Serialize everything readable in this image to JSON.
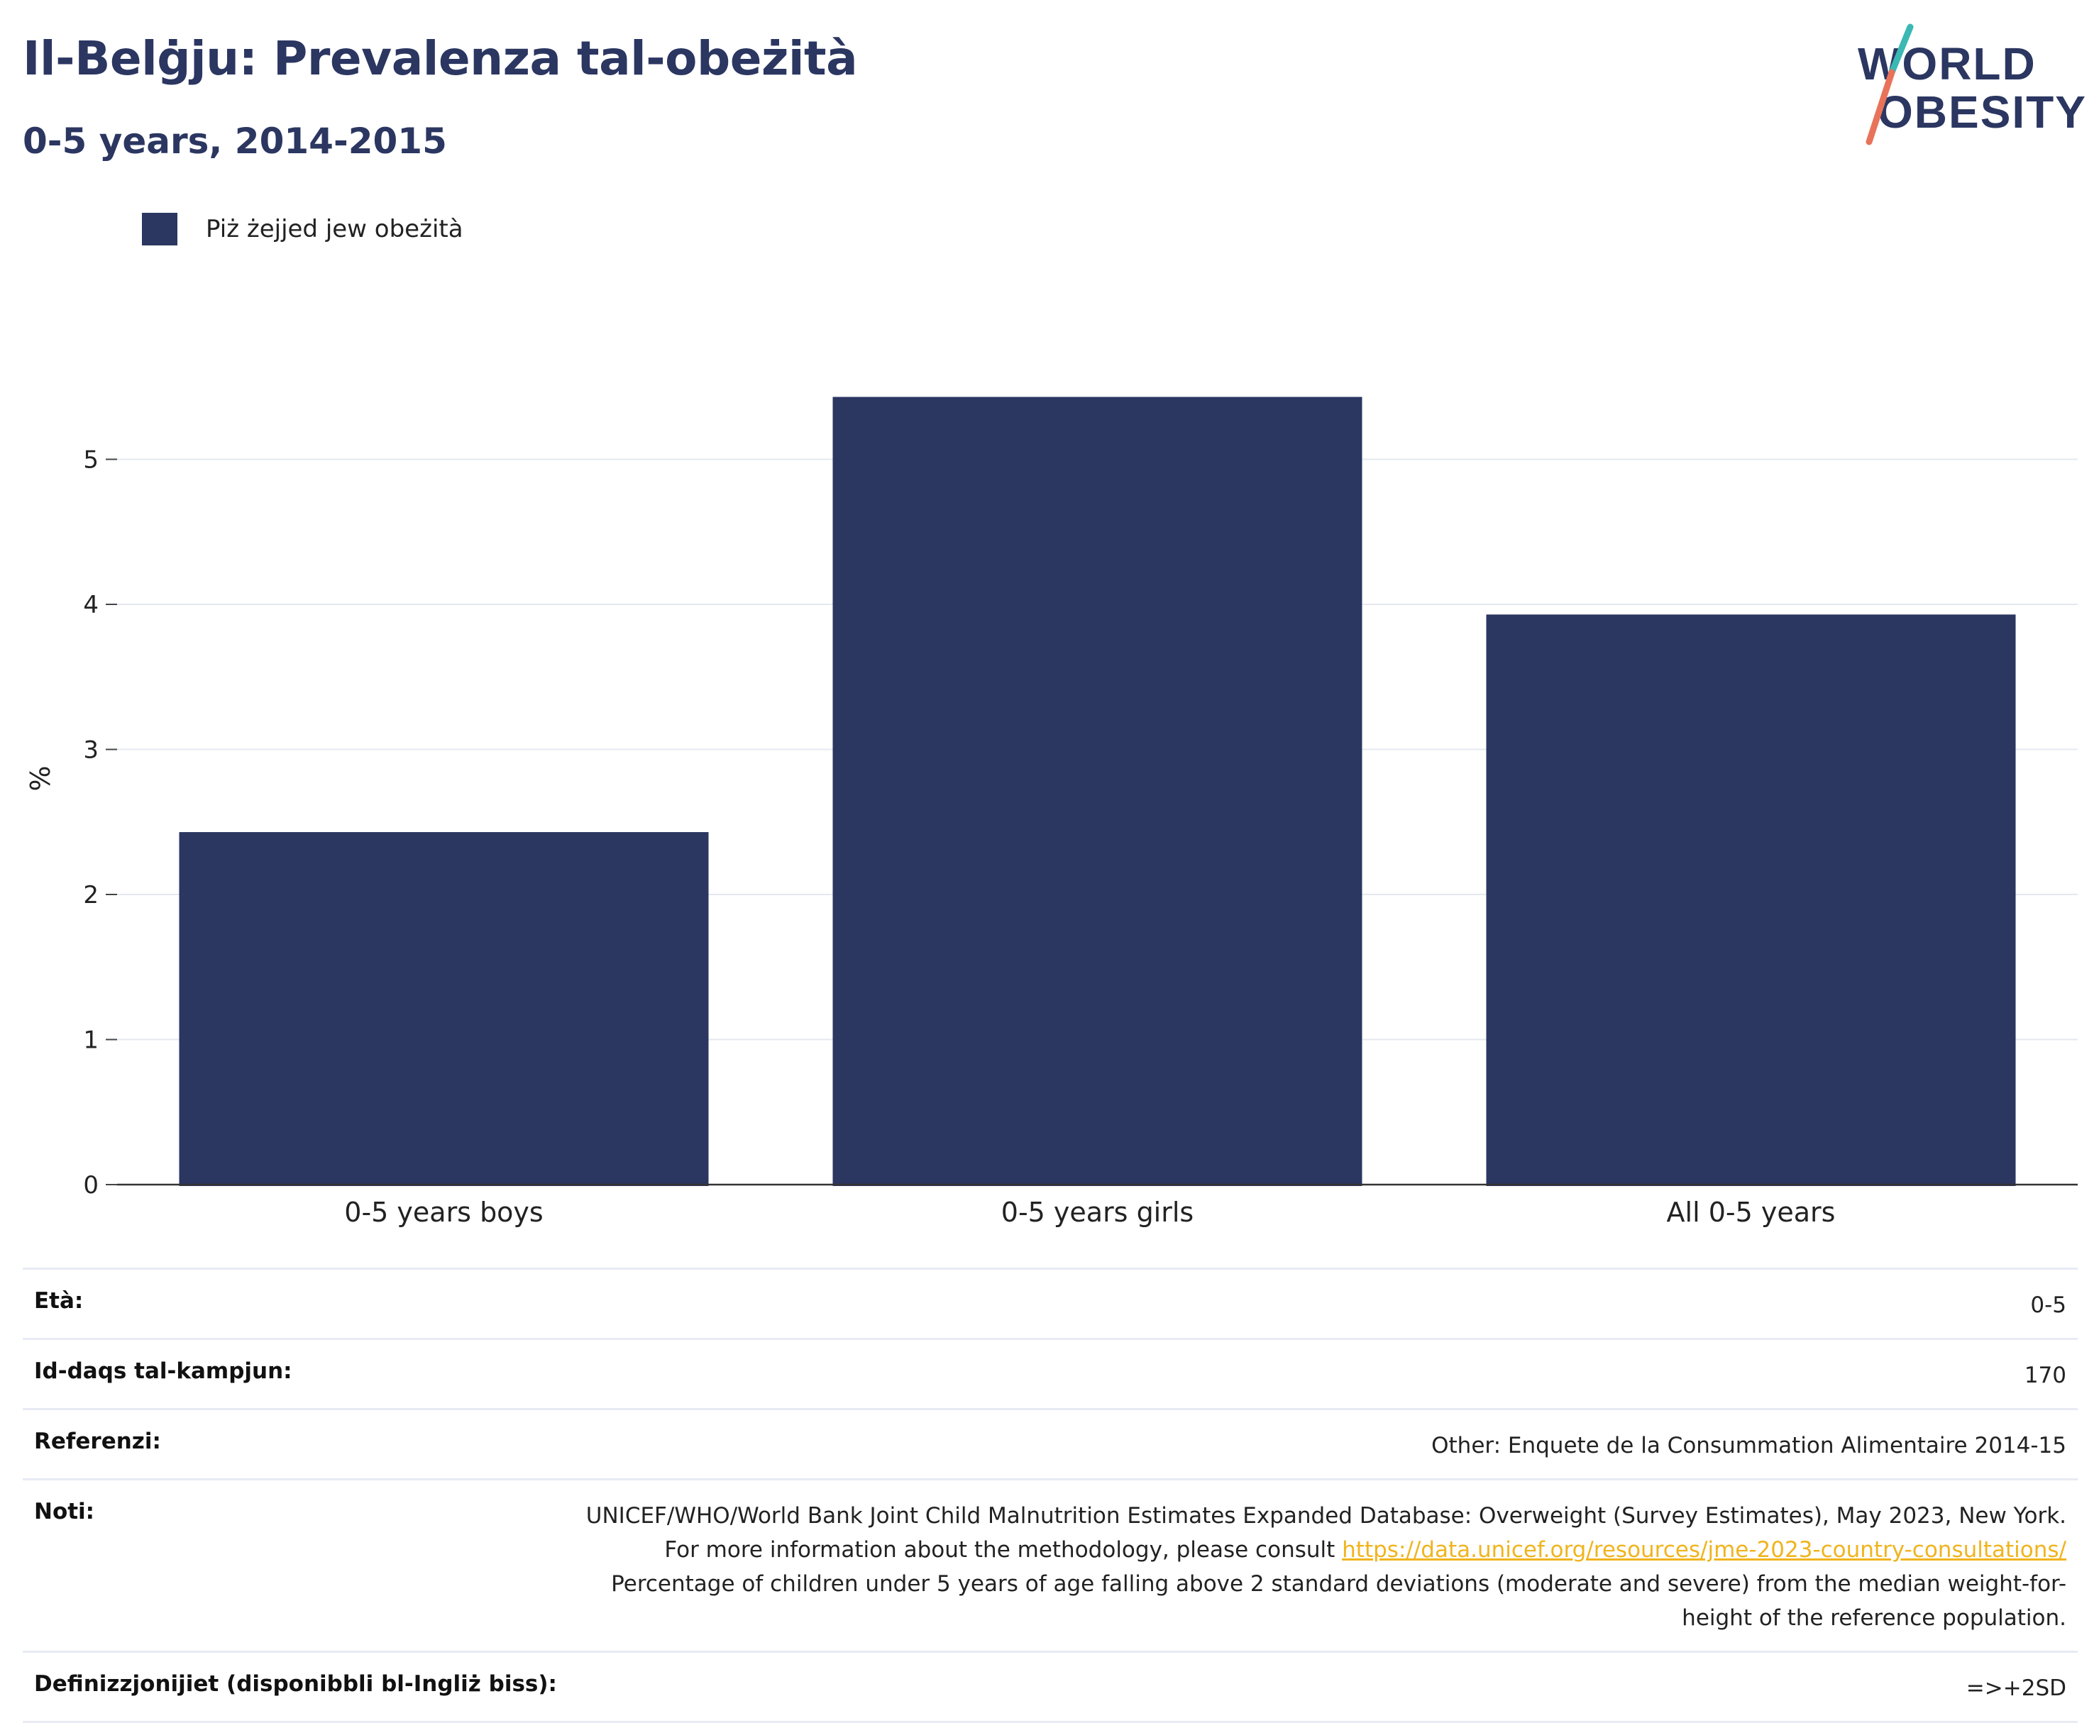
{
  "header": {
    "title": "Il-Belġju: Prevalenza tal-obeżità",
    "subtitle": "0-5 years, 2014-2015"
  },
  "logo": {
    "line1": "WORLD",
    "line2": "OBESITY",
    "colors": {
      "text": "#2b3661",
      "slash_top": "#3cb8b4",
      "slash_bottom": "#e8735a"
    }
  },
  "legend": {
    "label": "Piż żejjed jew obeżità",
    "color": "#2b3661"
  },
  "chart_data": {
    "type": "bar",
    "categories": [
      "0-5 years boys",
      "0-5 years girls",
      "All 0-5 years"
    ],
    "series": [
      {
        "name": "Piż żejjed jew obeżità",
        "values": [
          2.43,
          5.43,
          3.93
        ],
        "color": "#2b3661"
      }
    ],
    "ylabel": "%",
    "ylim": [
      0,
      5.6
    ],
    "yticks": [
      0,
      1,
      2,
      3,
      4,
      5
    ],
    "grid": true,
    "legend_position": "top-left"
  },
  "meta": {
    "age": {
      "label": "Età:",
      "value": "0-5"
    },
    "sample": {
      "label": "Id-daqs tal-kampjun:",
      "value": "170"
    },
    "references": {
      "label": "Referenzi:",
      "value": "Other: Enquete de la Consummation Alimentaire 2014-15"
    },
    "notes": {
      "label": "Noti:",
      "text1": "UNICEF/WHO/World Bank Joint Child Malnutrition Estimates Expanded Database: Overweight (Survey Estimates), May 2023, New York. For more information about the methodology, please consult",
      "link": "https://data.unicef.org/resources/jme-2023-country-consultations/",
      "text2": "Percentage of children under 5 years of age falling above 2 standard deviations (moderate and severe) from the median weight-for-height of the reference population."
    },
    "definitions": {
      "label": "Definizzjonijiet (disponibbli bl-Ingliż biss):",
      "value": "=>+2SD"
    }
  }
}
